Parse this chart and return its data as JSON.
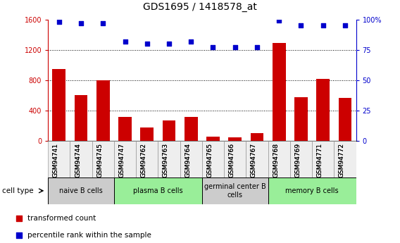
{
  "title": "GDS1695 / 1418578_at",
  "samples": [
    "GSM94741",
    "GSM94744",
    "GSM94745",
    "GSM94747",
    "GSM94762",
    "GSM94763",
    "GSM94764",
    "GSM94765",
    "GSM94766",
    "GSM94767",
    "GSM94768",
    "GSM94769",
    "GSM94771",
    "GSM94772"
  ],
  "transformed_count": [
    950,
    600,
    800,
    320,
    175,
    270,
    320,
    60,
    45,
    100,
    1290,
    580,
    820,
    570
  ],
  "percentile_rank": [
    98,
    97,
    97,
    82,
    80,
    80,
    82,
    77,
    77,
    77,
    99,
    95,
    95,
    95
  ],
  "ylim_left": [
    0,
    1600
  ],
  "ylim_right": [
    0,
    100
  ],
  "yticks_left": [
    0,
    400,
    800,
    1200,
    1600
  ],
  "yticks_right": [
    0,
    25,
    50,
    75,
    100
  ],
  "cell_groups": [
    {
      "label": "naive B cells",
      "start": 0,
      "end": 3,
      "color": "#cccccc"
    },
    {
      "label": "plasma B cells",
      "start": 3,
      "end": 7,
      "color": "#99ee99"
    },
    {
      "label": "germinal center B\ncells",
      "start": 7,
      "end": 10,
      "color": "#cccccc"
    },
    {
      "label": "memory B cells",
      "start": 10,
      "end": 14,
      "color": "#99ee99"
    }
  ],
  "bar_color": "#cc0000",
  "dot_color": "#0000cc",
  "left_axis_color": "#cc0000",
  "right_axis_color": "#0000cc",
  "background_color": "#ffffff",
  "cell_type_label": "cell type",
  "legend_items": [
    {
      "marker": "s",
      "color": "#cc0000",
      "label": "transformed count"
    },
    {
      "marker": "s",
      "color": "#0000cc",
      "label": "percentile rank within the sample"
    }
  ],
  "grid_values": [
    400,
    800,
    1200
  ],
  "bar_width": 0.6
}
